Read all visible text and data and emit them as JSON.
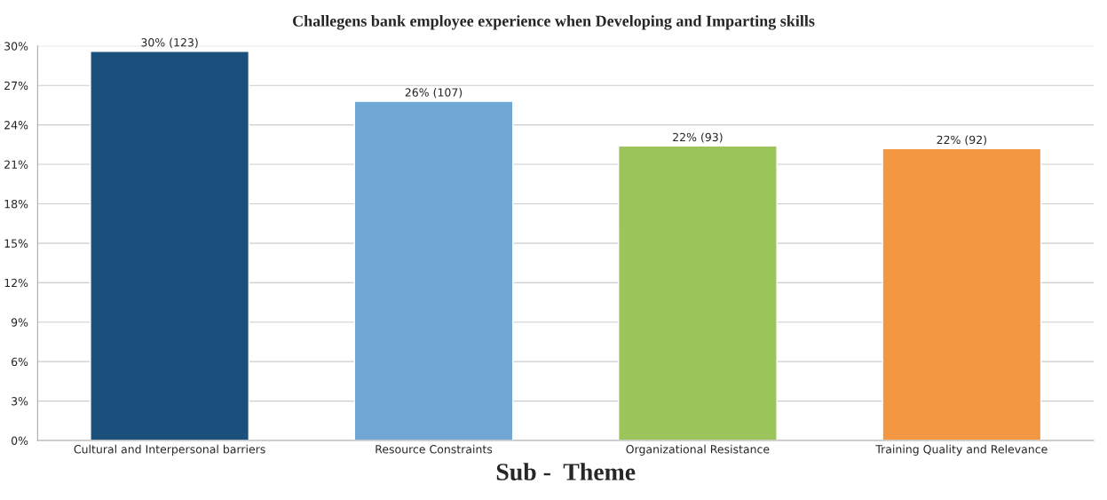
{
  "chart_data": {
    "type": "bar",
    "title": "Challegens bank employee experience when Developing and Imparting skills",
    "xlabel": "Sub -  Theme",
    "categories": [
      "Cultural and Interpersonal barriers",
      "Resource Constraints",
      "Organizational Resistance",
      "Training Quality and Relevance"
    ],
    "values": [
      29.6,
      25.8,
      22.4,
      22.2
    ],
    "colors": [
      "#1c507c",
      "#6fa6d3",
      "#9bc55a",
      "#f39742"
    ],
    "value_labels": [
      "30% (123)",
      "26% (107)",
      "22% (93)",
      "22% (92)"
    ],
    "ylim": [
      0,
      30
    ],
    "yticks": [
      {
        "value": 0,
        "label": "0%"
      },
      {
        "value": 3,
        "label": "3%"
      },
      {
        "value": 6,
        "label": "6%"
      },
      {
        "value": 9,
        "label": "9%"
      },
      {
        "value": 12,
        "label": "12%"
      },
      {
        "value": 15,
        "label": "15%"
      },
      {
        "value": 18,
        "label": "18%"
      },
      {
        "value": 21,
        "label": "21%"
      },
      {
        "value": 24,
        "label": "24%"
      },
      {
        "value": 27,
        "label": "27%"
      },
      {
        "value": 30,
        "label": "30%"
      }
    ],
    "grid": "y"
  }
}
